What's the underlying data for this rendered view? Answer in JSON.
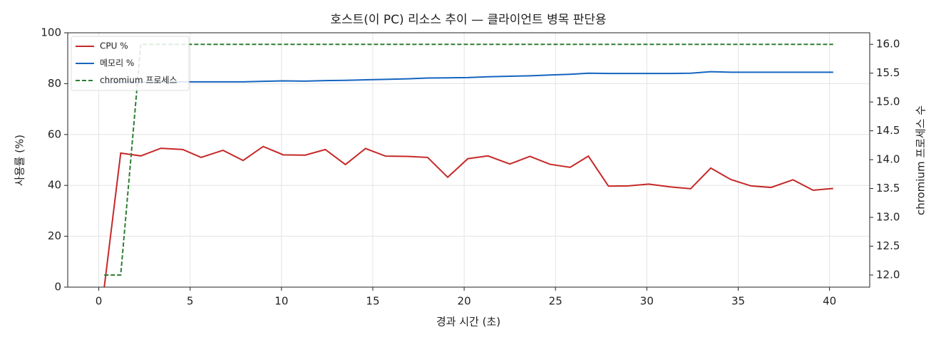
{
  "chart_data": {
    "type": "line",
    "title": "호스트(이 PC) 리소스 추이 — 클라이언트 병목 판단용",
    "x_label": "경과 시간 (초)",
    "y_label": "사용률 (%)",
    "y2_label": "chromium 프로세스 수",
    "x": [
      0.3,
      1.2,
      2.3,
      3.4,
      4.6,
      5.6,
      6.8,
      7.9,
      9.0,
      10.1,
      11.3,
      12.4,
      13.5,
      14.6,
      15.7,
      16.9,
      18.0,
      19.1,
      20.2,
      21.3,
      22.5,
      23.6,
      24.7,
      25.8,
      26.8,
      27.9,
      29.0,
      30.1,
      31.3,
      32.4,
      33.5,
      34.6,
      35.7,
      36.8,
      38.0,
      39.1,
      40.2
    ],
    "series": [
      {
        "name": "CPU %",
        "color": "#c62828",
        "style": "solid",
        "values": [
          0,
          52.7,
          51.6,
          54.6,
          54.1,
          51.0,
          53.8,
          49.8,
          55.3,
          52.0,
          51.9,
          54.1,
          48.2,
          54.5,
          51.5,
          51.4,
          51.0,
          43.2,
          50.5,
          51.6,
          48.4,
          51.4,
          48.3,
          47.1,
          51.5,
          39.7,
          39.8,
          40.5,
          39.4,
          38.7,
          46.8,
          42.3,
          39.8,
          39.2,
          42.2,
          38.1,
          38.8
        ]
      },
      {
        "name": "메모리 %",
        "color": "#1565c0",
        "style": "solid",
        "values": [
          80.4,
          80.5,
          80.6,
          80.6,
          80.7,
          80.7,
          80.7,
          80.7,
          80.9,
          81.1,
          81.0,
          81.2,
          81.3,
          81.5,
          81.7,
          81.9,
          82.2,
          82.3,
          82.4,
          82.7,
          82.9,
          83.1,
          83.4,
          83.7,
          84.1,
          84.0,
          84.0,
          84.0,
          84.0,
          84.1,
          84.7,
          84.5,
          84.5,
          84.5,
          84.5,
          84.5,
          84.5
        ]
      },
      {
        "name": "chromium 프로세스",
        "color": "#2e7d32",
        "style": "dashed",
        "axis": "y2",
        "values": [
          12,
          12,
          16,
          16,
          16,
          16,
          16,
          16,
          16,
          16,
          16,
          16,
          16,
          16,
          16,
          16,
          16,
          16,
          16,
          16,
          16,
          16,
          16,
          16,
          16,
          16,
          16,
          16,
          16,
          16,
          16,
          16,
          16,
          16,
          16,
          16,
          16
        ]
      }
    ],
    "xlim": [
      -1.7,
      42.2
    ],
    "xticks": [
      0,
      5,
      10,
      15,
      20,
      25,
      30,
      35,
      40
    ],
    "ylim": [
      0,
      100
    ],
    "yticks": [
      0,
      20,
      40,
      60,
      80,
      100
    ],
    "y2lim": [
      11.79,
      16.2
    ],
    "y2ticks": [
      {
        "value": 12,
        "label": "12.0"
      },
      12.5,
      {
        "value": 13,
        "label": "13.0"
      },
      13.5,
      {
        "value": 14,
        "label": "14.0"
      },
      14.5,
      {
        "value": 15,
        "label": "15.0"
      },
      15.5,
      {
        "value": 16,
        "label": "16.0"
      }
    ],
    "grid": true,
    "legend": "upper-left"
  }
}
